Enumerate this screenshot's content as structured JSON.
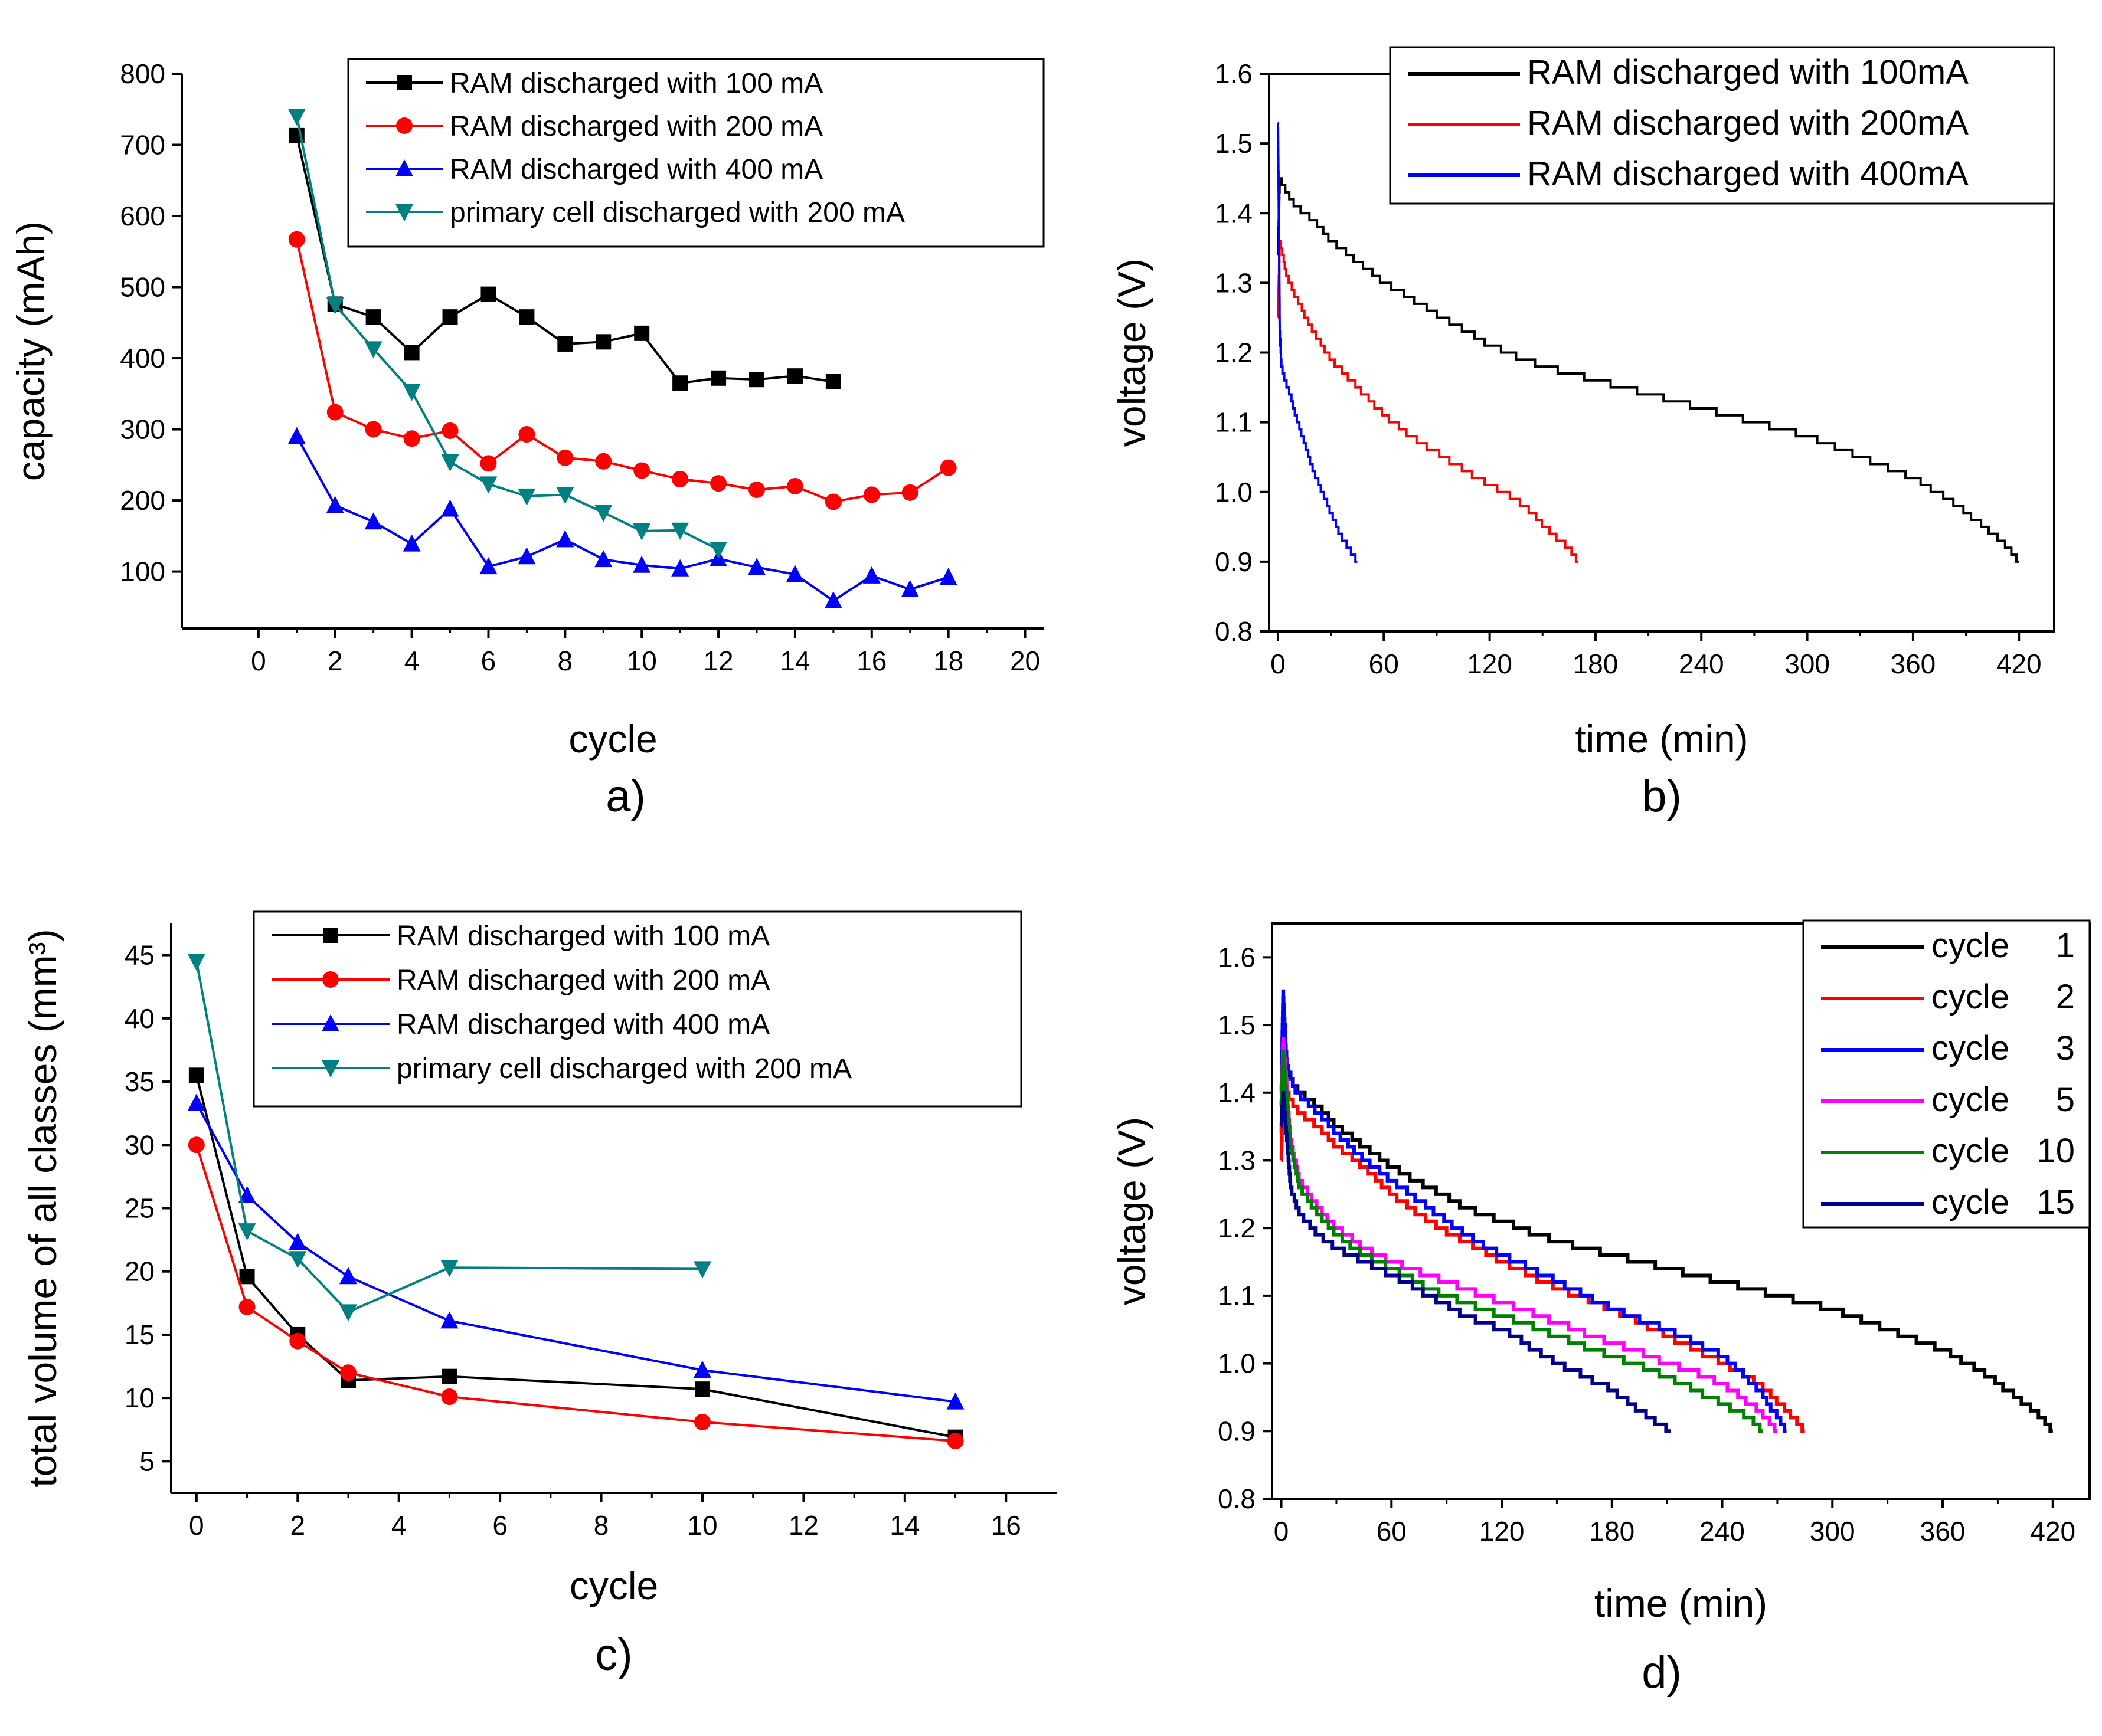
{
  "chart_data": [
    {
      "id": "a",
      "type": "line",
      "panel_label": "a)",
      "xlabel": "cycle",
      "ylabel": "capacity (mAh)",
      "xlim": [
        -2.0,
        20.5
      ],
      "ylim": [
        20,
        800
      ],
      "xticks": [
        0,
        2,
        4,
        6,
        8,
        10,
        12,
        14,
        16,
        18,
        20
      ],
      "yticks": [
        100,
        200,
        300,
        400,
        500,
        600,
        700,
        800
      ],
      "legend_position": "top-right",
      "series": [
        {
          "name": "RAM discharged with 100 mA",
          "color": "#000000",
          "marker": "square",
          "x": [
            1,
            2,
            3,
            4,
            5,
            6,
            7,
            8,
            9,
            10,
            11,
            12,
            13,
            14,
            15
          ],
          "y": [
            713,
            476,
            458,
            408,
            458,
            490,
            458,
            420,
            423,
            435,
            365,
            372,
            370,
            375,
            367
          ]
        },
        {
          "name": "RAM discharged with 200 mA",
          "color": "#ff0000",
          "marker": "circle",
          "x": [
            1,
            2,
            3,
            4,
            5,
            6,
            7,
            8,
            9,
            10,
            11,
            12,
            13,
            14,
            15,
            16,
            17,
            18
          ],
          "y": [
            567,
            324,
            300,
            287,
            298,
            252,
            293,
            260,
            255,
            242,
            230,
            224,
            215,
            220,
            198,
            208,
            211,
            246
          ]
        },
        {
          "name": "RAM discharged with 400 mA",
          "color": "#0000ff",
          "marker": "triangle-up",
          "x": [
            1,
            2,
            3,
            4,
            5,
            6,
            7,
            8,
            9,
            10,
            11,
            12,
            13,
            14,
            15,
            16,
            17,
            18
          ],
          "y": [
            290,
            193,
            170,
            139,
            188,
            107,
            121,
            145,
            117,
            109,
            104,
            118,
            106,
            96,
            59,
            94,
            75,
            92
          ]
        },
        {
          "name": "primary cell discharged with 200 mA",
          "color": "#008080",
          "marker": "triangle-down",
          "x": [
            1,
            2,
            3,
            4,
            5,
            6,
            7,
            8,
            9,
            10,
            11,
            12
          ],
          "y": [
            740,
            475,
            413,
            353,
            254,
            223,
            206,
            208,
            183,
            157,
            158,
            131
          ]
        }
      ]
    },
    {
      "id": "b",
      "type": "line",
      "panel_label": "b)",
      "xlabel": "time (min)",
      "ylabel": "voltage (V)",
      "xlim": [
        -5,
        440
      ],
      "ylim": [
        0.8,
        1.6
      ],
      "xticks": [
        0,
        60,
        120,
        180,
        240,
        300,
        360,
        420
      ],
      "yticks": [
        0.8,
        0.9,
        1.0,
        1.1,
        1.2,
        1.3,
        1.4,
        1.5,
        1.6
      ],
      "ytick_labels": [
        "0.8",
        "0.9",
        "1.0",
        "1.1",
        "1.2",
        "1.3",
        "1.4",
        "1.5",
        "1.6"
      ],
      "legend_position": "top-right",
      "series": [
        {
          "name": "RAM discharged with 100mA",
          "color": "#000000",
          "x": [
            0,
            1,
            5,
            10,
            20,
            30,
            45,
            60,
            80,
            100,
            120,
            150,
            180,
            210,
            240,
            270,
            300,
            320,
            340,
            360,
            380,
            400,
            410,
            420
          ],
          "y": [
            1.34,
            1.45,
            1.43,
            1.41,
            1.39,
            1.36,
            1.33,
            1.3,
            1.27,
            1.24,
            1.21,
            1.18,
            1.16,
            1.14,
            1.12,
            1.1,
            1.08,
            1.06,
            1.04,
            1.02,
            0.99,
            0.95,
            0.93,
            0.9
          ]
        },
        {
          "name": "RAM discharged with 200mA",
          "color": "#ff0000",
          "x": [
            0,
            1,
            5,
            10,
            20,
            30,
            45,
            60,
            80,
            100,
            120,
            140,
            155,
            165,
            170
          ],
          "y": [
            1.25,
            1.36,
            1.31,
            1.28,
            1.23,
            1.19,
            1.15,
            1.11,
            1.07,
            1.04,
            1.01,
            0.98,
            0.94,
            0.92,
            0.9
          ]
        },
        {
          "name": "RAM discharged with 400mA",
          "color": "#0000ff",
          "x": [
            0,
            0.5,
            1,
            2,
            4,
            7,
            10,
            15,
            20,
            25,
            30,
            35,
            40,
            45
          ],
          "y": [
            1.53,
            1.4,
            1.23,
            1.18,
            1.16,
            1.14,
            1.11,
            1.07,
            1.03,
            1.0,
            0.97,
            0.94,
            0.92,
            0.9
          ]
        }
      ]
    },
    {
      "id": "c",
      "type": "line",
      "panel_label": "c)",
      "xlabel": "cycle",
      "ylabel": "total volume of all classes (mm³)",
      "xlim": [
        -0.5,
        17
      ],
      "ylim": [
        2.5,
        47.5
      ],
      "xticks": [
        0,
        2,
        4,
        6,
        8,
        10,
        12,
        14,
        16
      ],
      "yticks": [
        5,
        10,
        15,
        20,
        25,
        30,
        35,
        40,
        45
      ],
      "legend_position": "top-right",
      "series": [
        {
          "name": "RAM discharged with 100 mA",
          "color": "#000000",
          "marker": "square",
          "x": [
            0,
            1,
            2,
            3,
            5,
            10,
            15
          ],
          "y": [
            35.5,
            19.6,
            15.0,
            11.4,
            11.7,
            10.7,
            6.9
          ]
        },
        {
          "name": "RAM discharged with 200 mA",
          "color": "#ff0000",
          "marker": "circle",
          "x": [
            0,
            1,
            2,
            3,
            5,
            10,
            15
          ],
          "y": [
            30.0,
            17.2,
            14.5,
            12.0,
            10.1,
            8.1,
            6.6
          ]
        },
        {
          "name": "RAM discharged with 400 mA",
          "color": "#0000ff",
          "marker": "triangle-up",
          "x": [
            0,
            1,
            2,
            3,
            5,
            10,
            15
          ],
          "y": [
            33.3,
            26.0,
            22.3,
            19.6,
            16.1,
            12.2,
            9.7
          ]
        },
        {
          "name": "primary cell discharged with 200 mA",
          "color": "#008080",
          "marker": "triangle-down",
          "x": [
            0,
            1,
            2,
            3,
            5,
            10
          ],
          "y": [
            44.5,
            23.2,
            21.0,
            16.8,
            20.3,
            20.2
          ]
        }
      ]
    },
    {
      "id": "d",
      "type": "line",
      "panel_label": "d)",
      "xlabel": "time (min)",
      "ylabel": "voltage (V)",
      "xlim": [
        -5,
        440
      ],
      "ylim": [
        0.8,
        1.65
      ],
      "xticks": [
        0,
        60,
        120,
        180,
        240,
        300,
        360,
        420
      ],
      "yticks": [
        0.8,
        0.9,
        1.0,
        1.1,
        1.2,
        1.3,
        1.4,
        1.5,
        1.6
      ],
      "ytick_labels": [
        "0.8",
        "0.9",
        "1.0",
        "1.1",
        "1.2",
        "1.3",
        "1.4",
        "1.5",
        "1.6"
      ],
      "legend_position": "top-right",
      "series": [
        {
          "name": "cycle",
          "number": "1",
          "color": "#000000",
          "x": [
            0,
            1,
            5,
            10,
            20,
            30,
            45,
            60,
            80,
            100,
            120,
            150,
            180,
            210,
            240,
            270,
            300,
            320,
            340,
            360,
            380,
            400,
            410,
            420
          ],
          "y": [
            1.34,
            1.44,
            1.42,
            1.4,
            1.38,
            1.35,
            1.32,
            1.29,
            1.26,
            1.23,
            1.21,
            1.18,
            1.16,
            1.14,
            1.12,
            1.1,
            1.08,
            1.06,
            1.04,
            1.02,
            0.99,
            0.95,
            0.93,
            0.9
          ]
        },
        {
          "name": "cycle",
          "number": "2",
          "color": "#ff0000",
          "x": [
            0,
            1,
            5,
            10,
            20,
            30,
            45,
            60,
            80,
            100,
            120,
            150,
            180,
            210,
            240,
            260,
            275,
            285
          ],
          "y": [
            1.3,
            1.41,
            1.39,
            1.37,
            1.35,
            1.32,
            1.29,
            1.25,
            1.21,
            1.18,
            1.15,
            1.11,
            1.08,
            1.04,
            1.0,
            0.97,
            0.93,
            0.9
          ]
        },
        {
          "name": "cycle",
          "number": "3",
          "color": "#0000ff",
          "x": [
            0,
            1,
            3,
            8,
            20,
            30,
            45,
            60,
            80,
            100,
            120,
            150,
            180,
            210,
            240,
            260,
            275
          ],
          "y": [
            1.4,
            1.55,
            1.44,
            1.4,
            1.37,
            1.34,
            1.3,
            1.27,
            1.23,
            1.19,
            1.16,
            1.12,
            1.08,
            1.05,
            1.01,
            0.96,
            0.9
          ]
        },
        {
          "name": "cycle",
          "number": "5",
          "color": "#ff00ff",
          "x": [
            0,
            1,
            5,
            10,
            20,
            30,
            45,
            60,
            80,
            100,
            120,
            150,
            180,
            210,
            240,
            260,
            270
          ],
          "y": [
            1.38,
            1.48,
            1.33,
            1.27,
            1.23,
            1.2,
            1.17,
            1.15,
            1.13,
            1.11,
            1.09,
            1.06,
            1.03,
            1.0,
            0.97,
            0.93,
            0.9
          ]
        },
        {
          "name": "cycle",
          "number": "10",
          "color": "#008000",
          "x": [
            0,
            1,
            5,
            10,
            20,
            30,
            45,
            60,
            80,
            100,
            120,
            150,
            180,
            210,
            240,
            255,
            262
          ],
          "y": [
            1.38,
            1.46,
            1.32,
            1.26,
            1.22,
            1.19,
            1.16,
            1.14,
            1.11,
            1.09,
            1.07,
            1.04,
            1.01,
            0.98,
            0.94,
            0.92,
            0.9
          ]
        },
        {
          "name": "cycle",
          "number": "15",
          "color": "#00008b",
          "x": [
            0,
            1,
            5,
            10,
            20,
            30,
            45,
            60,
            80,
            100,
            120,
            150,
            180,
            200,
            212
          ],
          "y": [
            1.35,
            1.4,
            1.26,
            1.22,
            1.19,
            1.17,
            1.15,
            1.13,
            1.1,
            1.07,
            1.05,
            1.0,
            0.96,
            0.92,
            0.9
          ]
        }
      ]
    }
  ]
}
